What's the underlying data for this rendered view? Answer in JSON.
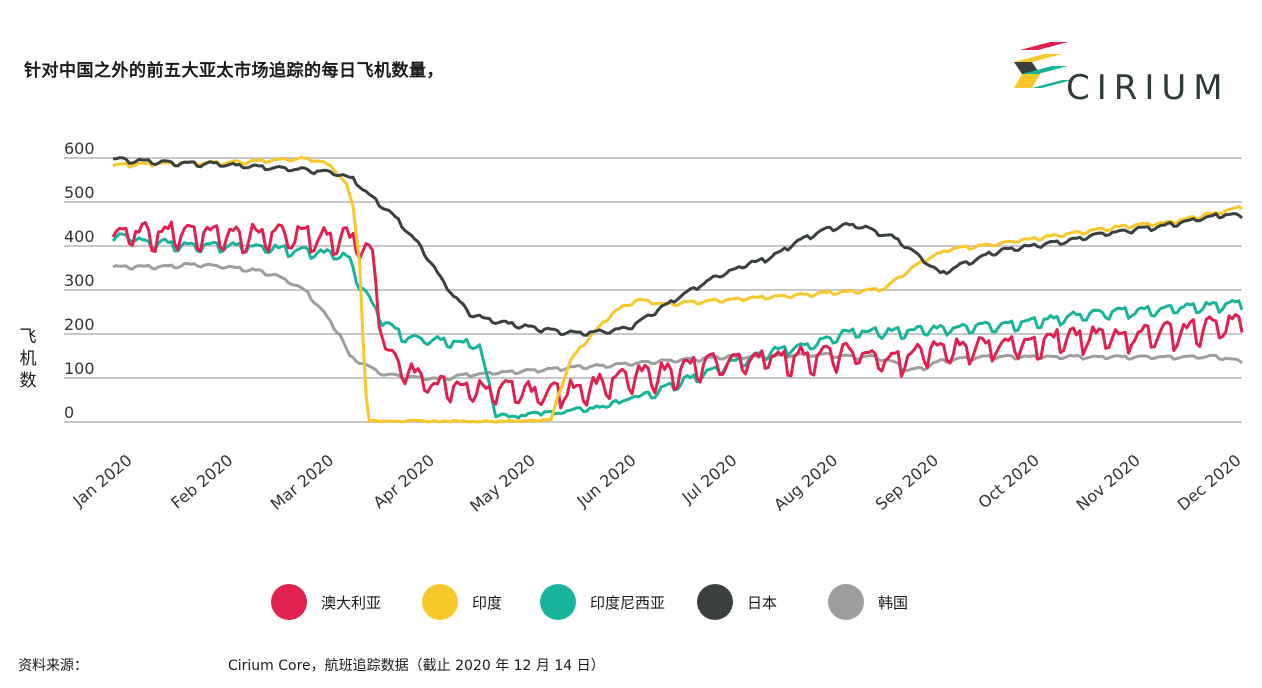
{
  "title": "针对中国之外的前五大亚太市场追踪的每日飞机数量，",
  "logo": {
    "text": "CIRIUM"
  },
  "source": {
    "label": "资料来源：",
    "text": "Cirium Core，航班追踪数据（截止 2020 年 12 月 14 日）"
  },
  "colors": {
    "australia": "#e0204f",
    "india": "#f7c72b",
    "indonesia": "#17b49a",
    "japan": "#3a4040",
    "korea": "#9e9e9e",
    "grid": "#c8c8c8"
  },
  "chart_data": {
    "type": "line",
    "title": "针对中国之外的前五大亚太市场追踪的每日飞机数量，",
    "ylabel": "飞机数",
    "ylim": [
      0,
      600
    ],
    "yticks": [
      0,
      100,
      200,
      300,
      400,
      500,
      600
    ],
    "grid": true,
    "legend_position": "bottom",
    "x_labels": [
      "Jan 2020",
      "Feb 2020",
      "Mar 2020",
      "Apr 2020",
      "May 2020",
      "Jun 2020",
      "Jul 2020",
      "Aug 2020",
      "Sep 2020",
      "Oct 2020",
      "Nov 2020",
      "Dec 2020"
    ],
    "x_unit": "days since 2020-01-01 (label dates shown on axis)",
    "series": [
      {
        "name": "澳大利亚",
        "color": "#e0204f",
        "weekly_oscillation": 45,
        "points": [
          [
            0,
            440
          ],
          [
            20,
            445
          ],
          [
            40,
            440
          ],
          [
            60,
            435
          ],
          [
            75,
            430
          ],
          [
            80,
            390
          ],
          [
            82,
            260
          ],
          [
            85,
            160
          ],
          [
            90,
            140
          ],
          [
            95,
            110
          ],
          [
            100,
            95
          ],
          [
            110,
            90
          ],
          [
            120,
            85
          ],
          [
            130,
            80
          ],
          [
            140,
            85
          ],
          [
            150,
            100
          ],
          [
            160,
            115
          ],
          [
            170,
            125
          ],
          [
            180,
            140
          ],
          [
            190,
            150
          ],
          [
            200,
            160
          ],
          [
            210,
            160
          ],
          [
            220,
            165
          ],
          [
            230,
            170
          ],
          [
            240,
            150
          ],
          [
            250,
            175
          ],
          [
            260,
            180
          ],
          [
            270,
            190
          ],
          [
            280,
            195
          ],
          [
            290,
            200
          ],
          [
            300,
            205
          ],
          [
            310,
            210
          ],
          [
            320,
            215
          ],
          [
            330,
            220
          ],
          [
            340,
            230
          ],
          [
            348,
            240
          ]
        ]
      },
      {
        "name": "印度",
        "color": "#f7c72b",
        "weekly_oscillation": 6,
        "points": [
          [
            0,
            585
          ],
          [
            15,
            590
          ],
          [
            30,
            590
          ],
          [
            45,
            595
          ],
          [
            55,
            600
          ],
          [
            62,
            600
          ],
          [
            68,
            580
          ],
          [
            72,
            540
          ],
          [
            74,
            490
          ],
          [
            76,
            370
          ],
          [
            77,
            200
          ],
          [
            78,
            60
          ],
          [
            79,
            3
          ],
          [
            85,
            3
          ],
          [
            100,
            2
          ],
          [
            120,
            2
          ],
          [
            130,
            4
          ],
          [
            135,
            6
          ],
          [
            138,
            80
          ],
          [
            141,
            140
          ],
          [
            145,
            180
          ],
          [
            150,
            220
          ],
          [
            155,
            255
          ],
          [
            162,
            280
          ],
          [
            170,
            270
          ],
          [
            180,
            275
          ],
          [
            190,
            280
          ],
          [
            200,
            285
          ],
          [
            210,
            290
          ],
          [
            220,
            295
          ],
          [
            230,
            300
          ],
          [
            238,
            305
          ],
          [
            242,
            330
          ],
          [
            250,
            370
          ],
          [
            258,
            395
          ],
          [
            265,
            400
          ],
          [
            275,
            410
          ],
          [
            285,
            420
          ],
          [
            295,
            430
          ],
          [
            305,
            440
          ],
          [
            315,
            450
          ],
          [
            325,
            455
          ],
          [
            335,
            470
          ],
          [
            342,
            480
          ],
          [
            348,
            490
          ]
        ]
      },
      {
        "name": "印度尼西亚",
        "color": "#17b49a",
        "weekly_oscillation": 18,
        "points": [
          [
            0,
            420
          ],
          [
            5,
            430
          ],
          [
            10,
            415
          ],
          [
            20,
            410
          ],
          [
            30,
            405
          ],
          [
            40,
            405
          ],
          [
            50,
            400
          ],
          [
            60,
            395
          ],
          [
            70,
            385
          ],
          [
            73,
            370
          ],
          [
            76,
            320
          ],
          [
            80,
            270
          ],
          [
            84,
            230
          ],
          [
            90,
            200
          ],
          [
            100,
            190
          ],
          [
            110,
            185
          ],
          [
            113,
            180
          ],
          [
            118,
            20
          ],
          [
            122,
            15
          ],
          [
            130,
            20
          ],
          [
            140,
            25
          ],
          [
            150,
            35
          ],
          [
            160,
            55
          ],
          [
            170,
            80
          ],
          [
            180,
            110
          ],
          [
            190,
            140
          ],
          [
            200,
            160
          ],
          [
            210,
            175
          ],
          [
            220,
            190
          ],
          [
            225,
            205
          ],
          [
            230,
            210
          ],
          [
            240,
            210
          ],
          [
            250,
            215
          ],
          [
            260,
            220
          ],
          [
            270,
            225
          ],
          [
            280,
            230
          ],
          [
            290,
            240
          ],
          [
            300,
            250
          ],
          [
            310,
            255
          ],
          [
            320,
            260
          ],
          [
            330,
            265
          ],
          [
            340,
            270
          ],
          [
            348,
            275
          ]
        ]
      },
      {
        "name": "日本",
        "color": "#3a4040",
        "weekly_oscillation": 8,
        "points": [
          [
            0,
            600
          ],
          [
            10,
            595
          ],
          [
            20,
            590
          ],
          [
            30,
            590
          ],
          [
            40,
            585
          ],
          [
            50,
            580
          ],
          [
            60,
            575
          ],
          [
            68,
            570
          ],
          [
            74,
            555
          ],
          [
            78,
            525
          ],
          [
            82,
            500
          ],
          [
            88,
            460
          ],
          [
            95,
            400
          ],
          [
            100,
            340
          ],
          [
            105,
            290
          ],
          [
            110,
            250
          ],
          [
            115,
            235
          ],
          [
            125,
            222
          ],
          [
            135,
            210
          ],
          [
            145,
            205
          ],
          [
            155,
            210
          ],
          [
            160,
            220
          ],
          [
            165,
            245
          ],
          [
            170,
            265
          ],
          [
            175,
            290
          ],
          [
            180,
            310
          ],
          [
            185,
            330
          ],
          [
            190,
            345
          ],
          [
            195,
            360
          ],
          [
            200,
            370
          ],
          [
            205,
            385
          ],
          [
            210,
            410
          ],
          [
            215,
            425
          ],
          [
            220,
            440
          ],
          [
            225,
            450
          ],
          [
            230,
            450
          ],
          [
            235,
            435
          ],
          [
            240,
            425
          ],
          [
            245,
            400
          ],
          [
            250,
            370
          ],
          [
            255,
            340
          ],
          [
            260,
            355
          ],
          [
            265,
            370
          ],
          [
            270,
            385
          ],
          [
            275,
            395
          ],
          [
            285,
            405
          ],
          [
            295,
            415
          ],
          [
            305,
            430
          ],
          [
            315,
            440
          ],
          [
            325,
            450
          ],
          [
            335,
            465
          ],
          [
            342,
            475
          ],
          [
            348,
            470
          ]
        ]
      },
      {
        "name": "韩国",
        "color": "#9e9e9e",
        "weekly_oscillation": 6,
        "points": [
          [
            0,
            355
          ],
          [
            15,
            355
          ],
          [
            25,
            360
          ],
          [
            35,
            355
          ],
          [
            45,
            345
          ],
          [
            50,
            335
          ],
          [
            55,
            320
          ],
          [
            60,
            295
          ],
          [
            65,
            250
          ],
          [
            70,
            200
          ],
          [
            73,
            150
          ],
          [
            78,
            130
          ],
          [
            84,
            110
          ],
          [
            90,
            105
          ],
          [
            100,
            100
          ],
          [
            110,
            110
          ],
          [
            120,
            115
          ],
          [
            130,
            120
          ],
          [
            140,
            125
          ],
          [
            150,
            130
          ],
          [
            160,
            135
          ],
          [
            170,
            140
          ],
          [
            180,
            145
          ],
          [
            190,
            150
          ],
          [
            200,
            150
          ],
          [
            210,
            155
          ],
          [
            220,
            155
          ],
          [
            230,
            150
          ],
          [
            235,
            150
          ],
          [
            240,
            140
          ],
          [
            245,
            120
          ],
          [
            250,
            125
          ],
          [
            255,
            140
          ],
          [
            260,
            145
          ],
          [
            270,
            150
          ],
          [
            280,
            150
          ],
          [
            290,
            150
          ],
          [
            300,
            150
          ],
          [
            310,
            150
          ],
          [
            320,
            150
          ],
          [
            330,
            150
          ],
          [
            340,
            150
          ],
          [
            348,
            140
          ]
        ]
      }
    ]
  }
}
